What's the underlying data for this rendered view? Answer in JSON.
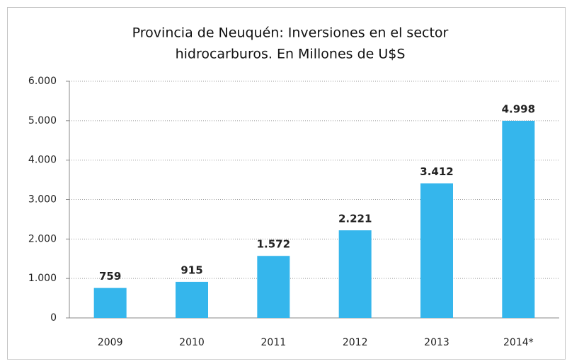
{
  "chart_data": {
    "type": "bar",
    "title": [
      "Provincia de Neuquén: Inversiones en el sector",
      "hidrocarburos. En Millones de U$S"
    ],
    "categories": [
      "2009",
      "2010",
      "2011",
      "2012",
      "2013",
      "2014*"
    ],
    "values": [
      759,
      915,
      1572,
      2221,
      3412,
      4998
    ],
    "value_labels": [
      "759",
      "915",
      "1.572",
      "2.221",
      "3.412",
      "4.998"
    ],
    "color": "#35b6ec",
    "ylim": [
      0,
      6000
    ],
    "yticks": [
      0,
      {
        "value": 1000,
        "label": "1.000"
      },
      {
        "value": 2000,
        "label": "2.000"
      },
      {
        "value": 3000,
        "label": "3.000"
      },
      {
        "value": 4000,
        "label": "4.000"
      },
      {
        "value": 5000,
        "label": "5.000"
      },
      {
        "value": 6000,
        "label": "6.000"
      }
    ],
    "grid": true
  }
}
